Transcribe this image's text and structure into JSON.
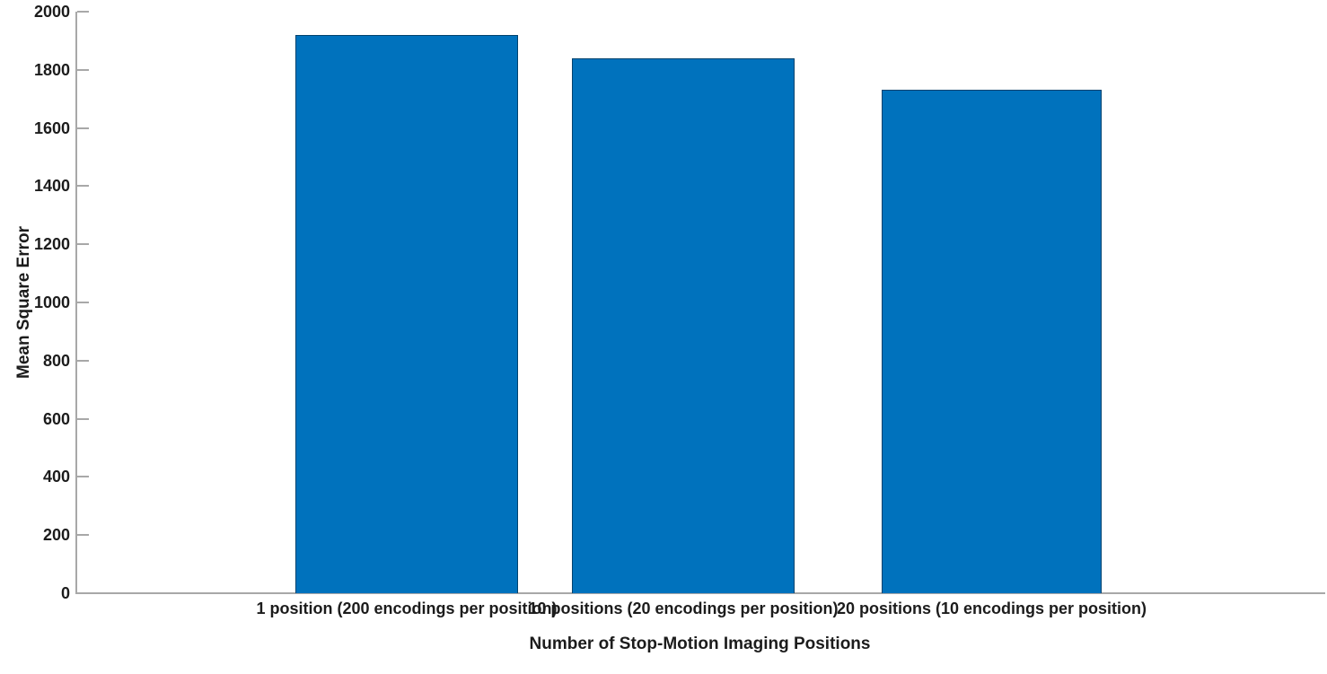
{
  "figure": {
    "background": "#ffffff"
  },
  "chart_data": {
    "type": "bar",
    "title": "",
    "xlabel": "Number of Stop-Motion Imaging Positions",
    "ylabel": "Mean Square Error",
    "categories": [
      "1 position (200 encodings per position)",
      "10 positions (20 encodings per position)",
      "20 positions (10 encodings per position)"
    ],
    "values": [
      1920,
      1840,
      1730
    ],
    "ylim": [
      0,
      2000
    ],
    "yticks": [
      0,
      200,
      400,
      600,
      800,
      1000,
      1200,
      1400,
      1600,
      1800,
      2000
    ],
    "grid": false,
    "legend_position": "none",
    "bar_color": "#0072BD",
    "bar_edge_color": "rgba(0,0,0,0.42)",
    "axis_color": "#a8a8a8",
    "text_color": "#1c1c1c"
  }
}
